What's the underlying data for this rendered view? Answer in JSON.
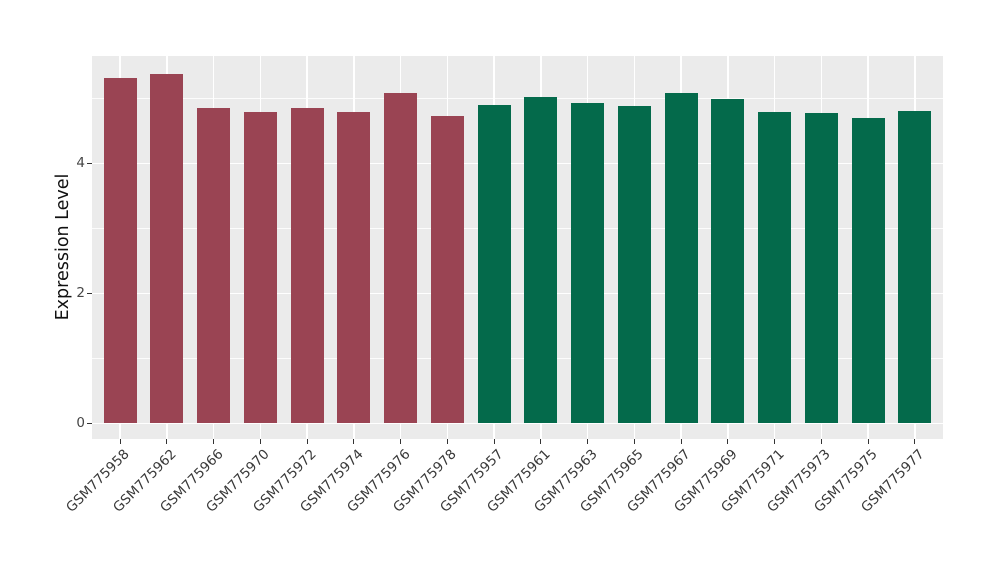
{
  "chart_data": {
    "type": "bar",
    "title": "",
    "xlabel": "",
    "ylabel": "Expression Level",
    "ylim": [
      -0.25,
      5.65
    ],
    "ytick_labels": [
      "0",
      "2",
      "4"
    ],
    "ytick_values": [
      0,
      2,
      4
    ],
    "ytick_minor_values": [
      1,
      3,
      5
    ],
    "grid": "on",
    "legend_position": "none",
    "panel_background": "#EBEBEB",
    "grid_color": "#FFFFFF",
    "tick_color": "#333333",
    "group_colors": {
      "maroon": "#9A4453",
      "green": "#046A4B"
    },
    "categories": [
      "GSM775958",
      "GSM775962",
      "GSM775966",
      "GSM775970",
      "GSM775972",
      "GSM775974",
      "GSM775976",
      "GSM775978",
      "GSM775957",
      "GSM775961",
      "GSM775963",
      "GSM775965",
      "GSM775967",
      "GSM775969",
      "GSM775971",
      "GSM775973",
      "GSM775975",
      "GSM775977"
    ],
    "bars": [
      {
        "label": "GSM775958",
        "value": 5.31,
        "group": "maroon"
      },
      {
        "label": "GSM775962",
        "value": 5.37,
        "group": "maroon"
      },
      {
        "label": "GSM775966",
        "value": 4.85,
        "group": "maroon"
      },
      {
        "label": "GSM775970",
        "value": 4.78,
        "group": "maroon"
      },
      {
        "label": "GSM775972",
        "value": 4.84,
        "group": "maroon"
      },
      {
        "label": "GSM775974",
        "value": 4.79,
        "group": "maroon"
      },
      {
        "label": "GSM775976",
        "value": 5.08,
        "group": "maroon"
      },
      {
        "label": "GSM775978",
        "value": 4.72,
        "group": "maroon"
      },
      {
        "label": "GSM775957",
        "value": 4.9,
        "group": "green"
      },
      {
        "label": "GSM775961",
        "value": 5.02,
        "group": "green"
      },
      {
        "label": "GSM775963",
        "value": 4.92,
        "group": "green"
      },
      {
        "label": "GSM775965",
        "value": 4.88,
        "group": "green"
      },
      {
        "label": "GSM775967",
        "value": 5.08,
        "group": "green"
      },
      {
        "label": "GSM775969",
        "value": 4.98,
        "group": "green"
      },
      {
        "label": "GSM775971",
        "value": 4.78,
        "group": "green"
      },
      {
        "label": "GSM775973",
        "value": 4.77,
        "group": "green"
      },
      {
        "label": "GSM775975",
        "value": 4.69,
        "group": "green"
      },
      {
        "label": "GSM775977",
        "value": 4.8,
        "group": "green"
      }
    ]
  }
}
